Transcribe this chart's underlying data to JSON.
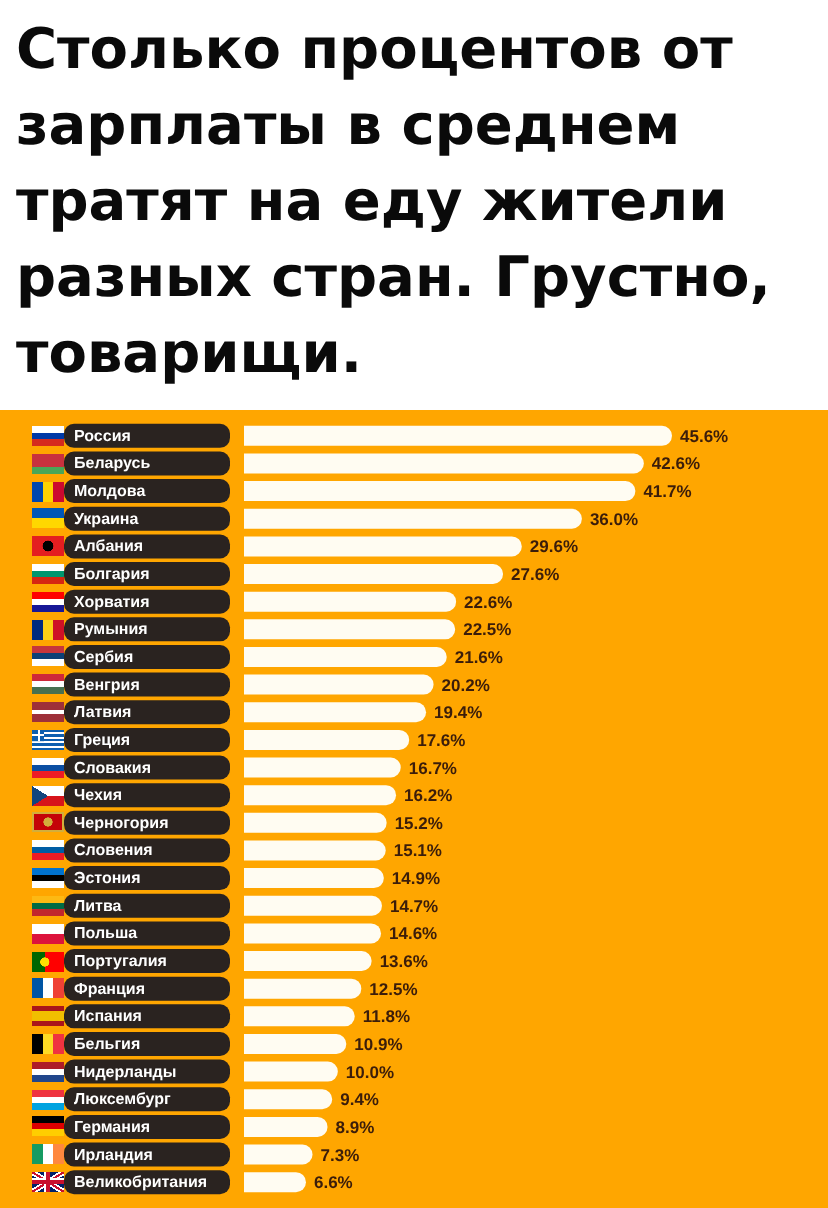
{
  "chart_data": {
    "type": "bar",
    "title": "Столько процентов от зарплаты в среднем тратят на еду жители разных стран. Грустно, товарищи.",
    "orientation": "horizontal",
    "categories": [
      "Россия",
      "Беларусь",
      "Молдова",
      "Украина",
      "Албания",
      "Болгария",
      "Хорватия",
      "Румыния",
      "Сербия",
      "Венгрия",
      "Латвия",
      "Греция",
      "Словакия",
      "Чехия",
      "Черногория",
      "Словения",
      "Эстония",
      "Литва",
      "Польша",
      "Португалия",
      "Франция",
      "Испания",
      "Бельгия",
      "Нидерланды",
      "Люксембург",
      "Германия",
      "Ирландия",
      "Великобритания"
    ],
    "values": [
      45.6,
      42.6,
      41.7,
      36.0,
      29.6,
      27.6,
      22.6,
      22.5,
      21.6,
      20.2,
      19.4,
      17.6,
      16.7,
      16.2,
      15.2,
      15.1,
      14.9,
      14.7,
      14.6,
      13.6,
      12.5,
      11.8,
      10.9,
      10.0,
      9.4,
      8.9,
      7.3,
      6.6
    ],
    "value_labels": [
      "45.6%",
      "42.6%",
      "41.7%",
      "36.0%",
      "29.6%",
      "27.6%",
      "22.6%",
      "22.5%",
      "21.6%",
      "20.2%",
      "19.4%",
      "17.6%",
      "16.7%",
      "16.2%",
      "15.2%",
      "15.1%",
      "14.9%",
      "14.7%",
      "14.6%",
      "13.6%",
      "12.5%",
      "11.8%",
      "10.9%",
      "10.0%",
      "9.4%",
      "8.9%",
      "7.3%",
      "6.6%"
    ],
    "color": "#fffcf2",
    "tick_labels": "y"
  }
}
